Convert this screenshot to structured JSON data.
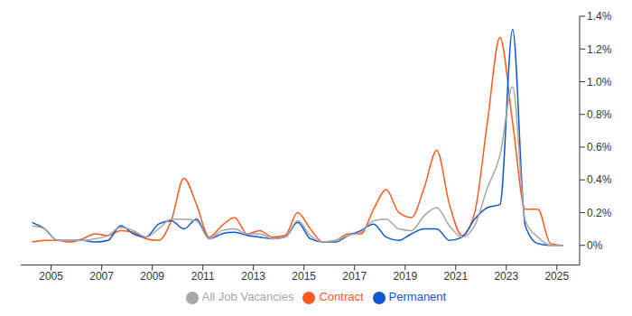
{
  "chart_data": {
    "type": "line",
    "x": [
      2004.25,
      2004.75,
      2005.25,
      2005.75,
      2006.25,
      2006.75,
      2007.25,
      2007.75,
      2008.25,
      2008.75,
      2009.25,
      2009.75,
      2010.25,
      2010.75,
      2011.25,
      2011.75,
      2012.25,
      2012.75,
      2013.25,
      2013.75,
      2014.25,
      2014.75,
      2015.25,
      2015.75,
      2016.25,
      2016.75,
      2017.25,
      2017.75,
      2018.25,
      2018.75,
      2019.25,
      2019.75,
      2020.25,
      2020.75,
      2021.25,
      2021.75,
      2022.25,
      2022.75,
      2023.25,
      2023.75,
      2024.25,
      2024.75,
      2025.25
    ],
    "series": [
      {
        "name": "Contract",
        "color": "#ff5a1f",
        "values": [
          0.02,
          0.03,
          0.03,
          0.02,
          0.04,
          0.07,
          0.06,
          0.09,
          0.08,
          0.04,
          0.03,
          0.15,
          0.41,
          0.25,
          0.05,
          0.12,
          0.17,
          0.07,
          0.09,
          0.05,
          0.06,
          0.2,
          0.1,
          0.02,
          0.03,
          0.07,
          0.07,
          0.22,
          0.34,
          0.2,
          0.17,
          0.35,
          0.58,
          0.25,
          0.06,
          0.2,
          0.75,
          1.27,
          0.75,
          0.22,
          0.22,
          0.01,
          0
        ]
      },
      {
        "name": "Permanent",
        "color": "#1155cc",
        "values": [
          0.14,
          0.1,
          0.03,
          0.03,
          0.03,
          0.02,
          0.03,
          0.12,
          0.07,
          0.05,
          0.13,
          0.15,
          0.1,
          0.16,
          0.04,
          0.07,
          0.08,
          0.06,
          0.05,
          0.04,
          0.05,
          0.14,
          0.04,
          0.02,
          0.02,
          0.06,
          0.09,
          0.13,
          0.05,
          0.03,
          0.07,
          0.1,
          0.1,
          0.03,
          0.05,
          0.16,
          0.23,
          0.25,
          1.32,
          0.12,
          0.01,
          0,
          0
        ]
      },
      {
        "name": "All Job Vacancies",
        "color": "#a6a6a6",
        "values": [
          0.12,
          0.1,
          0.03,
          0.03,
          0.03,
          0.04,
          0.06,
          0.11,
          0.09,
          0.05,
          0.1,
          0.16,
          0.16,
          0.15,
          0.04,
          0.09,
          0.1,
          0.07,
          0.07,
          0.04,
          0.05,
          0.15,
          0.06,
          0.02,
          0.03,
          0.06,
          0.08,
          0.15,
          0.16,
          0.1,
          0.09,
          0.18,
          0.23,
          0.12,
          0.05,
          0.12,
          0.35,
          0.55,
          0.97,
          0.15,
          0.05,
          0,
          0
        ]
      }
    ],
    "xlim": [
      2003.8,
      2025.9
    ],
    "xticks": [
      2005,
      2007,
      2009,
      2011,
      2013,
      2015,
      2017,
      2019,
      2021,
      2023,
      2025
    ],
    "ylim": [
      -0.12,
      1.4
    ],
    "yticks": [
      {
        "value": 0,
        "label": "0%"
      },
      {
        "value": 0.2,
        "label": "0.2%"
      },
      {
        "value": 0.4,
        "label": "0.4%"
      },
      {
        "value": 0.6,
        "label": "0.6%"
      },
      {
        "value": 0.8,
        "label": "0.8%"
      },
      {
        "value": 1,
        "label": "1.0%"
      },
      {
        "value": 1.2,
        "label": "1.2%"
      },
      {
        "value": 1.4,
        "label": "1.4%"
      }
    ],
    "grid": false,
    "legend": "bottom"
  }
}
